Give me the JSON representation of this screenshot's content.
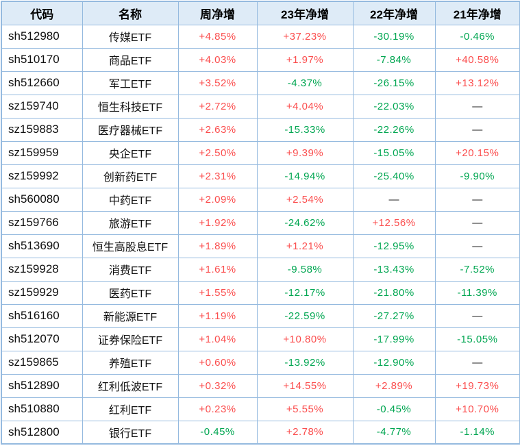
{
  "chart_data": {
    "type": "table",
    "columns": [
      "代码",
      "名称",
      "周净增",
      "23年净增",
      "22年净增",
      "21年净增"
    ],
    "rows": [
      [
        "sh512980",
        "传媒ETF",
        "+4.85%",
        "+37.23%",
        "-30.19%",
        "-0.46%"
      ],
      [
        "sh510170",
        "商品ETF",
        "+4.03%",
        "+1.97%",
        "-7.84%",
        "+40.58%"
      ],
      [
        "sh512660",
        "军工ETF",
        "+3.52%",
        "-4.37%",
        "-26.15%",
        "+13.12%"
      ],
      [
        "sz159740",
        "恒生科技ETF",
        "+2.72%",
        "+4.04%",
        "-22.03%",
        "—"
      ],
      [
        "sz159883",
        "医疗器械ETF",
        "+2.63%",
        "-15.33%",
        "-22.26%",
        "—"
      ],
      [
        "sz159959",
        "央企ETF",
        "+2.50%",
        "+9.39%",
        "-15.05%",
        "+20.15%"
      ],
      [
        "sz159992",
        "创新药ETF",
        "+2.31%",
        "-14.94%",
        "-25.40%",
        "-9.90%"
      ],
      [
        "sh560080",
        "中药ETF",
        "+2.09%",
        "+2.54%",
        "—",
        "—"
      ],
      [
        "sz159766",
        "旅游ETF",
        "+1.92%",
        "-24.62%",
        "+12.56%",
        "—"
      ],
      [
        "sh513690",
        "恒生高股息ETF",
        "+1.89%",
        "+1.21%",
        "-12.95%",
        "—"
      ],
      [
        "sz159928",
        "消费ETF",
        "+1.61%",
        "-9.58%",
        "-13.43%",
        "-7.52%"
      ],
      [
        "sz159929",
        "医药ETF",
        "+1.55%",
        "-12.17%",
        "-21.80%",
        "-11.39%"
      ],
      [
        "sh516160",
        "新能源ETF",
        "+1.19%",
        "-22.59%",
        "-27.27%",
        "—"
      ],
      [
        "sh512070",
        "证券保险ETF",
        "+1.04%",
        "+10.80%",
        "-17.99%",
        "-15.05%"
      ],
      [
        "sz159865",
        "养殖ETF",
        "+0.60%",
        "-13.92%",
        "-12.90%",
        "—"
      ],
      [
        "sh512890",
        "红利低波ETF",
        "+0.32%",
        "+14.55%",
        "+2.89%",
        "+19.73%"
      ],
      [
        "sh510880",
        "红利ETF",
        "+0.23%",
        "+5.55%",
        "-0.45%",
        "+10.70%"
      ],
      [
        "sh512800",
        "银行ETF",
        "-0.45%",
        "+2.78%",
        "-4.77%",
        "-1.14%"
      ]
    ]
  },
  "colors": {
    "positive": "#fb4d4d",
    "negative": "#00a651",
    "dash": "#222222",
    "header_bg": "#deebf7",
    "border": "#95badf"
  }
}
